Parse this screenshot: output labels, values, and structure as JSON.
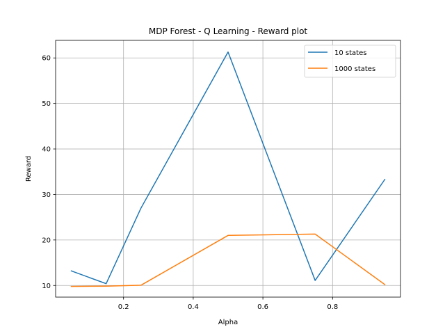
{
  "chart_data": {
    "type": "line",
    "title": "MDP Forest - Q Learning - Reward plot",
    "xlabel": "Alpha",
    "ylabel": "Reward",
    "x": [
      0.05,
      0.15,
      0.25,
      0.5,
      0.75,
      0.95
    ],
    "series": [
      {
        "name": "10 states",
        "color": "#1f77b4",
        "values": [
          13.2,
          10.4,
          27.0,
          61.3,
          11.1,
          33.3
        ]
      },
      {
        "name": "1000 states",
        "color": "#ff7f0e",
        "values": [
          9.8,
          9.85,
          10.05,
          21.0,
          21.3,
          10.2
        ]
      }
    ],
    "xlim": [
      0.005,
      0.995
    ],
    "ylim": [
      7.44,
      63.86
    ],
    "x_ticks": [
      {
        "value": 0.2,
        "label": "0.2"
      },
      {
        "value": 0.4,
        "label": "0.4"
      },
      {
        "value": 0.6,
        "label": "0.6"
      },
      {
        "value": 0.8,
        "label": "0.8"
      }
    ],
    "y_ticks": [
      {
        "value": 10,
        "label": "10"
      },
      {
        "value": 20,
        "label": "20"
      },
      {
        "value": 30,
        "label": "30"
      },
      {
        "value": 40,
        "label": "40"
      },
      {
        "value": 50,
        "label": "50"
      },
      {
        "value": 60,
        "label": "60"
      }
    ],
    "grid": true,
    "legend": "top-right"
  }
}
